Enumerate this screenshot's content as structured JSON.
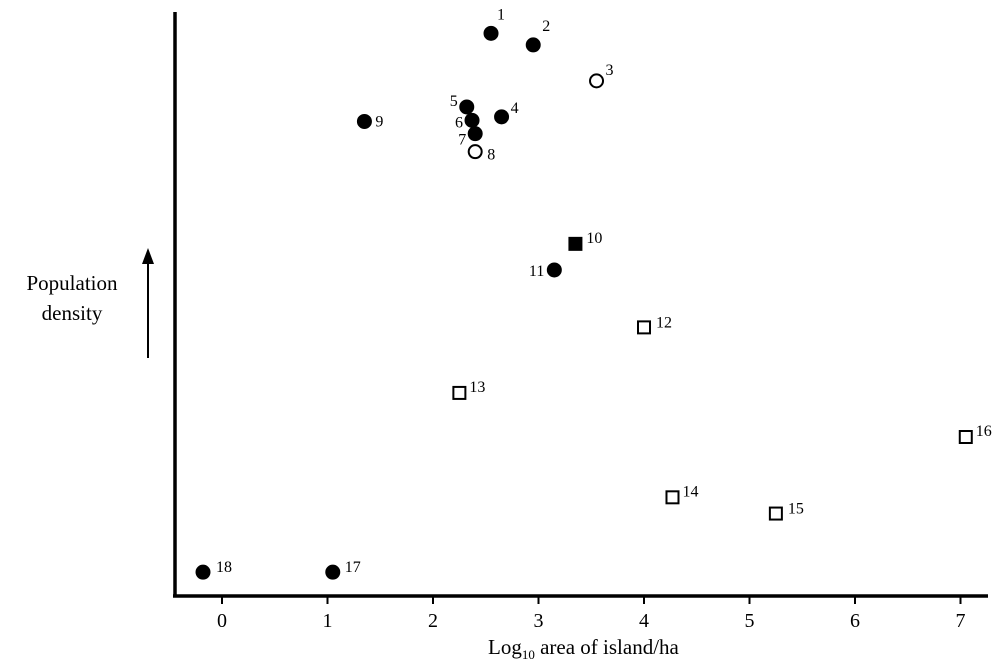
{
  "chart_data": {
    "type": "scatter",
    "xlabel_prefix": "Log",
    "xlabel_subscript": "10",
    "xlabel_suffix": " area of island/ha",
    "ylabel_line1": "Population",
    "ylabel_line2": "density",
    "x_ticks": [
      "0",
      "1",
      "2",
      "3",
      "4",
      "5",
      "6",
      "7"
    ],
    "xlim": [
      -0.5,
      7.25
    ],
    "ylim": [
      0,
      100
    ],
    "grid": false,
    "marker_styles": {
      "filled-circle": "#000000",
      "open-circle": "#ffffff",
      "filled-square": "#000000",
      "open-square": "#ffffff"
    },
    "points": [
      {
        "label": "1",
        "x": 2.55,
        "y": 94.6,
        "marker": "filled-circle"
      },
      {
        "label": "2",
        "x": 2.95,
        "y": 92.6,
        "marker": "filled-circle"
      },
      {
        "label": "3",
        "x": 3.55,
        "y": 86.4,
        "marker": "open-circle"
      },
      {
        "label": "4",
        "x": 2.65,
        "y": 80.2,
        "marker": "filled-circle"
      },
      {
        "label": "5",
        "x": 2.32,
        "y": 81.9,
        "marker": "filled-circle"
      },
      {
        "label": "6",
        "x": 2.37,
        "y": 79.6,
        "marker": "filled-circle"
      },
      {
        "label": "7",
        "x": 2.4,
        "y": 77.3,
        "marker": "filled-circle"
      },
      {
        "label": "8",
        "x": 2.4,
        "y": 74.2,
        "marker": "open-circle"
      },
      {
        "label": "9",
        "x": 1.35,
        "y": 79.4,
        "marker": "filled-circle"
      },
      {
        "label": "10",
        "x": 3.35,
        "y": 58.3,
        "marker": "filled-square"
      },
      {
        "label": "11",
        "x": 3.15,
        "y": 53.8,
        "marker": "filled-circle"
      },
      {
        "label": "12",
        "x": 4.0,
        "y": 43.9,
        "marker": "open-square"
      },
      {
        "label": "13",
        "x": 2.25,
        "y": 32.6,
        "marker": "open-square"
      },
      {
        "label": "14",
        "x": 4.27,
        "y": 14.6,
        "marker": "open-square"
      },
      {
        "label": "15",
        "x": 5.25,
        "y": 11.8,
        "marker": "open-square"
      },
      {
        "label": "16",
        "x": 7.05,
        "y": 25.0,
        "marker": "open-square"
      },
      {
        "label": "17",
        "x": 1.05,
        "y": 1.7,
        "marker": "filled-circle"
      },
      {
        "label": "18",
        "x": -0.18,
        "y": 1.7,
        "marker": "filled-circle"
      }
    ]
  }
}
